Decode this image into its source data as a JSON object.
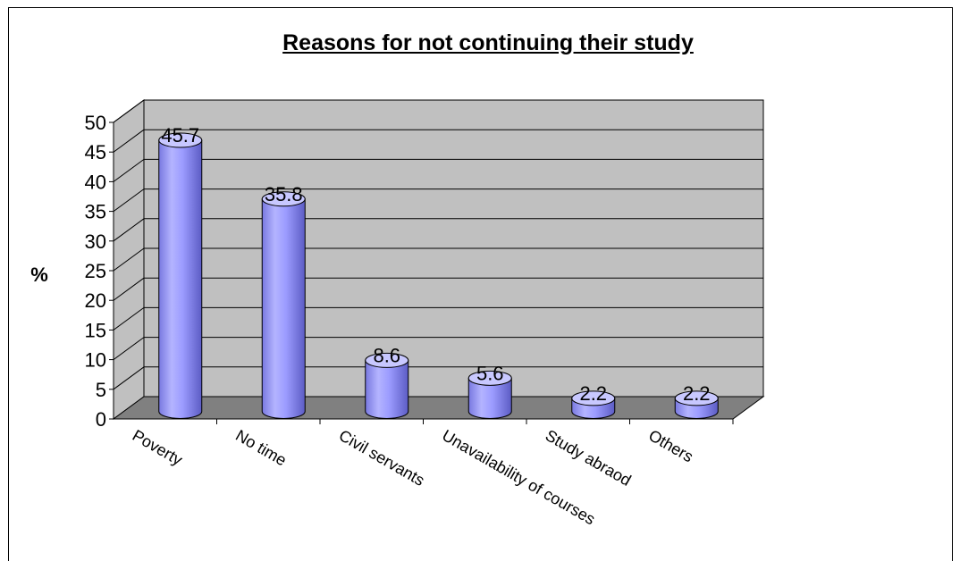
{
  "chart_data": {
    "type": "bar",
    "title": "Reasons for not continuing their study",
    "ylabel": "%",
    "xlabel": "",
    "categories": [
      "Poverty",
      "No time",
      "Civil servants",
      "Unavailability of courses",
      "Study abraod",
      "Others"
    ],
    "values": [
      45.7,
      35.8,
      8.6,
      5.6,
      2.2,
      2.2
    ],
    "data_labels": [
      "45.7",
      "35.8",
      "8.6",
      "5.6",
      "2.2",
      "2.2"
    ],
    "yticks": [
      "0",
      "5",
      "10",
      "15",
      "20",
      "25",
      "30",
      "35",
      "40",
      "45",
      "50"
    ],
    "ylim": [
      0,
      50
    ],
    "grid": true,
    "style": "3d-cylinder",
    "colors": {
      "bar": "#9999ff",
      "bar_dark": "#6666cc",
      "bar_light": "#c8c8ff",
      "wall": "#c0c0c0",
      "floor": "#808080"
    }
  }
}
